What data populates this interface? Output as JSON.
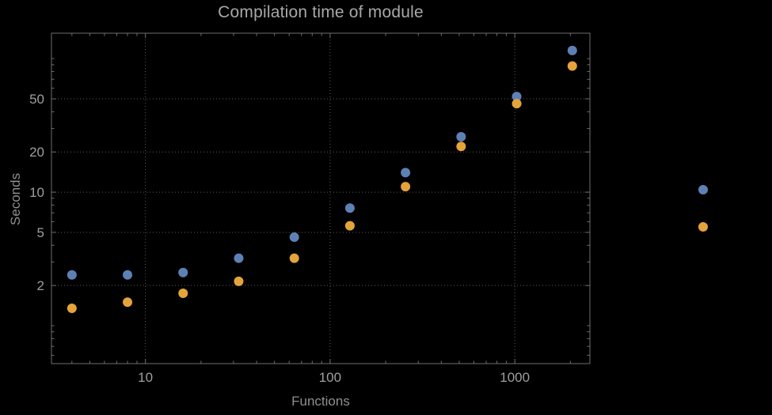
{
  "colors": {
    "background": "#000000",
    "frame": "#6e6e6e",
    "grid": "#5c5c5c",
    "title_text": "#a8a8a8",
    "tick_text": "#9f9f9f",
    "axis_label_text": "#8f8f8f",
    "series_blue": "#5e81b5",
    "series_orange": "#e5a33b"
  },
  "chart_data": {
    "type": "scatter",
    "title": "Compilation time of module",
    "xlabel": "Functions",
    "ylabel": "Seconds",
    "x_scale": "log",
    "y_scale": "log",
    "x": [
      4,
      8,
      16,
      32,
      64,
      128,
      256,
      512,
      1024,
      2048
    ],
    "series": [
      {
        "name": "series-1-blue",
        "color_key": "series_blue",
        "values": [
          2.4,
          2.4,
          2.5,
          3.2,
          4.6,
          7.6,
          14,
          26,
          52,
          115
        ]
      },
      {
        "name": "series-2-orange",
        "color_key": "series_orange",
        "values": [
          1.35,
          1.5,
          1.75,
          2.15,
          3.2,
          5.6,
          11,
          22,
          46,
          88
        ]
      }
    ],
    "x_ticks": [
      10,
      100,
      1000
    ],
    "x_tick_labels": [
      "10",
      "100",
      "1000"
    ],
    "y_ticks": [
      2,
      5,
      10,
      20,
      50
    ],
    "y_tick_labels": [
      "2",
      "5",
      "10",
      "20",
      "50"
    ],
    "xlim": [
      3.1,
      2550
    ],
    "ylim": [
      0.52,
      155
    ],
    "grid": "dotted",
    "legend": {
      "position": "right-outside",
      "entries": [
        {
          "marker_color_key": "series_blue",
          "label": ""
        },
        {
          "marker_color_key": "series_orange",
          "label": ""
        }
      ]
    }
  }
}
